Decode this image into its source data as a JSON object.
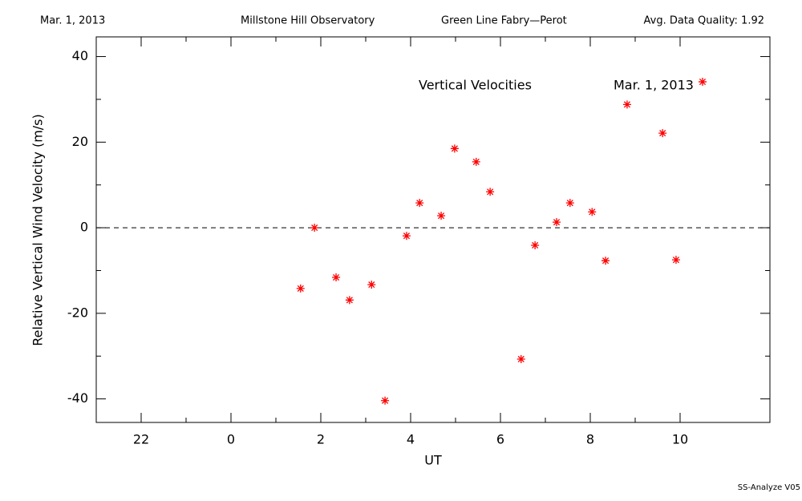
{
  "header": {
    "date": "Mar. 1, 2013",
    "site": "Millstone Hill Observatory",
    "instrument": "Green Line Fabry—Perot",
    "quality": "Avg. Data Quality: 1.92"
  },
  "footer": "SS-Analyze V05",
  "chart_data": {
    "type": "scatter",
    "title": "Vertical Velocities",
    "annotation": "Mar. 1, 2013",
    "xlabel": "UT",
    "ylabel": "Relative Vertical Wind Velocity (m/s)",
    "x": [
      1.55,
      1.86,
      2.34,
      2.64,
      3.13,
      3.43,
      3.91,
      4.2,
      4.68,
      4.98,
      5.46,
      5.77,
      6.46,
      6.77,
      7.25,
      7.55,
      8.04,
      8.34,
      8.82,
      9.61,
      9.91,
      10.5
    ],
    "values": [
      -14.2,
      0,
      -11.6,
      -16.9,
      -13.3,
      -40.4,
      -1.9,
      5.8,
      2.8,
      18.5,
      15.4,
      8.4,
      -30.7,
      -4.1,
      1.3,
      5.8,
      3.7,
      -7.7,
      28.8,
      22.1,
      -7.5,
      34.1
    ],
    "color": "#ff0000",
    "xlim": [
      -3,
      12
    ],
    "xticks": [
      {
        "value": -2,
        "label": "22"
      },
      0,
      2,
      4,
      6,
      8,
      10
    ],
    "ylim": [
      -45.5,
      44.6
    ],
    "yticks": [
      -40,
      -20,
      0,
      20,
      40
    ],
    "hline": 0
  }
}
